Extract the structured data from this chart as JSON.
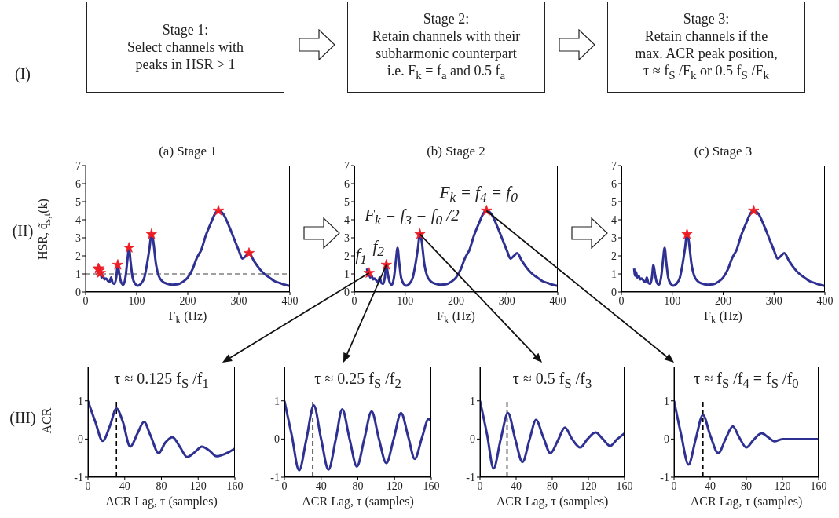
{
  "chart_data": [
    {
      "type": "other",
      "annotations": [
        "(I)",
        "Stage 1:\nSelect channels with\npeaks in HSR > 1",
        "Stage 2:\nRetain channels with their\nsubharmonic counterpart\ni.e. F$_{k}$ = f$_{a}$ and 0.5 f$_{a}$",
        "Stage 3:\nRetain channels if the\nmax. ACR peak position,\nτ ≈ f$_{S}$ /F$_{k}$ or 0.5 f$_{S}$ /F$_{k}$"
      ]
    },
    {
      "type": "line",
      "title": "(a) Stage 1",
      "xlabel": "F$_{k}$ (Hz)",
      "ylabel": "HSR, q̃$_{s,t}$(k)",
      "xlim": [
        0,
        400
      ],
      "ylim": [
        0,
        7
      ],
      "xticks": [
        0,
        100,
        200,
        300,
        400
      ],
      "yticks": [
        0,
        1,
        2,
        3,
        4,
        5,
        6,
        7
      ],
      "series": [
        {
          "color": "#2e3192",
          "x": [
            27,
            29,
            31,
            34,
            37,
            40,
            44,
            47,
            50,
            53,
            57,
            60,
            63,
            66,
            70,
            74,
            78,
            82,
            85,
            88,
            92,
            97,
            102,
            108,
            115,
            120,
            125,
            129,
            132,
            138,
            143,
            150,
            160,
            170,
            180,
            190,
            200,
            210,
            218,
            222,
            226,
            235,
            245,
            255,
            260,
            270,
            280,
            290,
            300,
            307,
            314,
            320,
            330,
            340,
            350,
            360,
            370,
            380,
            390,
            400
          ],
          "values": [
            0.9,
            1.1,
            0.8,
            0.9,
            0.7,
            0.75,
            0.6,
            0.55,
            0.8,
            0.5,
            0.45,
            0.8,
            1.5,
            1.0,
            0.5,
            0.4,
            0.8,
            1.8,
            2.45,
            1.7,
            0.8,
            0.45,
            0.35,
            0.45,
            0.8,
            1.5,
            2.4,
            3.2,
            2.9,
            1.5,
            0.9,
            0.6,
            0.45,
            0.4,
            0.42,
            0.55,
            0.8,
            1.3,
            1.9,
            2.1,
            2.3,
            3.1,
            3.8,
            4.4,
            4.5,
            4.3,
            3.7,
            3.0,
            2.3,
            1.85,
            2.0,
            2.15,
            1.7,
            1.3,
            1.0,
            0.8,
            0.6,
            0.5,
            0.4,
            0.33
          ]
        },
        {
          "type": "scatter",
          "marker": "star",
          "color": "#ed1c24",
          "x": [
            25,
            27,
            29,
            63,
            85,
            129,
            260,
            320
          ],
          "values": [
            1.3,
            1.2,
            1.05,
            1.5,
            2.45,
            3.2,
            4.5,
            2.15
          ]
        }
      ],
      "ref_lines": [
        {
          "axis": "y",
          "value": 1,
          "color": "#808080",
          "line_style": "dashed"
        }
      ],
      "annotations": [
        "(II)"
      ]
    },
    {
      "type": "line",
      "title": "(b) Stage 2",
      "xlabel": "F$_{k}$ (Hz)",
      "xlim": [
        0,
        400
      ],
      "ylim": [
        0,
        7
      ],
      "xticks": [
        0,
        100,
        200,
        300,
        400
      ],
      "yticks": [
        0,
        1,
        2,
        3,
        4,
        5,
        6,
        7
      ],
      "series": [
        {
          "color": "#2e3192",
          "x": [
            25,
            27,
            29,
            31,
            34,
            37,
            40,
            44,
            47,
            50,
            53,
            57,
            60,
            63,
            66,
            70,
            74,
            78,
            82,
            85,
            88,
            92,
            97,
            102,
            108,
            115,
            120,
            125,
            129,
            132,
            138,
            143,
            150,
            160,
            170,
            180,
            190,
            200,
            210,
            218,
            222,
            226,
            235,
            245,
            255,
            260,
            270,
            280,
            290,
            300,
            307,
            314,
            320,
            330,
            340,
            350,
            360,
            370,
            380,
            390,
            400
          ],
          "values": [
            1.3,
            0.9,
            1.1,
            0.8,
            0.9,
            0.7,
            0.75,
            0.6,
            0.55,
            0.8,
            0.5,
            0.45,
            0.8,
            1.5,
            1.0,
            0.5,
            0.4,
            0.8,
            1.8,
            2.45,
            1.7,
            0.8,
            0.45,
            0.35,
            0.45,
            0.8,
            1.5,
            2.4,
            3.2,
            2.9,
            1.5,
            0.9,
            0.6,
            0.45,
            0.4,
            0.42,
            0.55,
            0.8,
            1.3,
            1.9,
            2.1,
            2.3,
            3.1,
            3.8,
            4.4,
            4.5,
            4.3,
            3.7,
            3.0,
            2.3,
            1.85,
            2.0,
            2.15,
            1.7,
            1.3,
            1.0,
            0.8,
            0.6,
            0.5,
            0.4,
            0.33
          ]
        },
        {
          "type": "scatter",
          "marker": "star",
          "color": "#ed1c24",
          "x": [
            29,
            63,
            129,
            260
          ],
          "values": [
            1.05,
            1.5,
            3.2,
            4.5
          ]
        }
      ],
      "annotations": [
        {
          "text": "f$_{1}$",
          "x": 29,
          "y": 1.05
        },
        {
          "text": "f$_{2}$",
          "x": 63,
          "y": 1.5
        },
        {
          "text": "F$_{k}$ = f$_{3}$ = f$_{0}$ /2",
          "x": 129,
          "y": 3.2
        },
        {
          "text": "F$_{k}$ = f$_{4}$ = f$_{0}$",
          "x": 260,
          "y": 4.5
        }
      ]
    },
    {
      "type": "line",
      "title": "(c) Stage 3",
      "xlabel": "F$_{k}$ (Hz)",
      "xlim": [
        0,
        400
      ],
      "ylim": [
        0,
        7
      ],
      "xticks": [
        0,
        100,
        200,
        300,
        400
      ],
      "yticks": [
        0,
        1,
        2,
        3,
        4,
        5,
        6,
        7
      ],
      "series": [
        {
          "color": "#2e3192",
          "x": [
            25,
            27,
            29,
            31,
            34,
            37,
            40,
            44,
            47,
            50,
            53,
            57,
            60,
            63,
            66,
            70,
            74,
            78,
            82,
            85,
            88,
            92,
            97,
            102,
            108,
            115,
            120,
            125,
            129,
            132,
            138,
            143,
            150,
            160,
            170,
            180,
            190,
            200,
            210,
            218,
            222,
            226,
            235,
            245,
            255,
            260,
            270,
            280,
            290,
            300,
            307,
            314,
            320,
            330,
            340,
            350,
            360,
            370,
            380,
            390,
            400
          ],
          "values": [
            1.3,
            0.9,
            1.1,
            0.8,
            0.9,
            0.7,
            0.75,
            0.6,
            0.55,
            0.8,
            0.5,
            0.45,
            0.8,
            1.5,
            1.0,
            0.5,
            0.4,
            0.8,
            1.8,
            2.45,
            1.7,
            0.8,
            0.45,
            0.35,
            0.45,
            0.8,
            1.5,
            2.4,
            3.2,
            2.9,
            1.5,
            0.9,
            0.6,
            0.45,
            0.4,
            0.42,
            0.55,
            0.8,
            1.3,
            1.9,
            2.1,
            2.3,
            3.1,
            3.8,
            4.4,
            4.5,
            4.3,
            3.7,
            3.0,
            2.3,
            1.85,
            2.0,
            2.15,
            1.7,
            1.3,
            1.0,
            0.8,
            0.6,
            0.5,
            0.4,
            0.33
          ]
        },
        {
          "type": "scatter",
          "marker": "star",
          "color": "#ed1c24",
          "x": [
            129,
            260
          ],
          "values": [
            3.2,
            4.5
          ]
        }
      ]
    },
    {
      "type": "line",
      "title": "τ ≈ 0.125 f$_{S}$ /f$_{1}$",
      "xlabel": "ACR Lag, τ (samples)",
      "ylabel": "ACR",
      "xlim": [
        0,
        160
      ],
      "ylim": [
        -1,
        1.9
      ],
      "xticks": [
        0,
        40,
        80,
        120,
        160
      ],
      "yticks": [
        -1,
        0,
        1
      ],
      "series": [
        {
          "color": "#2e3192",
          "x": [
            0,
            8,
            16,
            24,
            31,
            38,
            46,
            54,
            61,
            68,
            77,
            84,
            92,
            100,
            108,
            116,
            124,
            132,
            140,
            150,
            160
          ],
          "values": [
            1,
            0.45,
            -0.05,
            0.35,
            0.8,
            0.45,
            -0.2,
            0.15,
            0.45,
            0.1,
            -0.37,
            -0.1,
            0.05,
            -0.2,
            -0.47,
            -0.35,
            -0.2,
            -0.3,
            -0.45,
            -0.38,
            -0.25
          ]
        }
      ],
      "ref_lines": [
        {
          "axis": "x",
          "value": 31,
          "color": "#000000",
          "line_style": "dashed"
        }
      ],
      "annotations": [
        "(III)"
      ]
    },
    {
      "type": "line",
      "title": "τ ≈ 0.25 f$_{S}$ /f$_{2}$",
      "xlabel": "ACR Lag, τ (samples)",
      "xlim": [
        0,
        160
      ],
      "ylim": [
        -1,
        1.9
      ],
      "xticks": [
        0,
        40,
        80,
        120,
        160
      ],
      "yticks": [
        -1,
        0,
        1
      ],
      "series": [
        {
          "color": "#2e3192",
          "x": [
            0,
            8,
            16,
            24,
            32,
            40,
            48,
            56,
            63,
            71,
            79,
            87,
            95,
            103,
            111,
            119,
            127,
            135,
            142,
            150,
            157,
            160
          ],
          "values": [
            1,
            0.1,
            -0.82,
            0.0,
            0.88,
            0.0,
            -0.8,
            0.0,
            0.78,
            0.0,
            -0.72,
            0.0,
            0.72,
            0.0,
            -0.63,
            0.0,
            0.68,
            0.05,
            -0.52,
            0.05,
            0.52,
            0.48
          ]
        }
      ],
      "ref_lines": [
        {
          "axis": "x",
          "value": 31,
          "color": "#000000",
          "line_style": "dashed"
        }
      ]
    },
    {
      "type": "line",
      "title": "τ ≈ 0.5 f$_{S}$ /f$_{3}$",
      "xlabel": "ACR Lag, τ (samples)",
      "xlim": [
        0,
        160
      ],
      "ylim": [
        -1,
        1.9
      ],
      "xticks": [
        0,
        40,
        80,
        120,
        160
      ],
      "yticks": [
        -1,
        0,
        1
      ],
      "series": [
        {
          "color": "#2e3192",
          "x": [
            0,
            8,
            15,
            23,
            31,
            39,
            47,
            55,
            62,
            70,
            78,
            86,
            94,
            102,
            111,
            119,
            128,
            136,
            144,
            152,
            160
          ],
          "values": [
            1,
            0.1,
            -0.77,
            0.0,
            0.68,
            0.0,
            -0.6,
            0.0,
            0.5,
            0.05,
            -0.37,
            -0.05,
            0.3,
            0.0,
            -0.22,
            0.0,
            0.17,
            0.0,
            -0.18,
            0.0,
            0.15
          ]
        }
      ],
      "ref_lines": [
        {
          "axis": "x",
          "value": 30,
          "color": "#000000",
          "line_style": "dashed"
        }
      ]
    },
    {
      "type": "line",
      "title": "τ ≈ f$_{S}$ /f$_{4}$ = f$_{S}$ /f$_{0}$",
      "xlabel": "ACR Lag, τ (samples)",
      "xlim": [
        0,
        160
      ],
      "ylim": [
        -1,
        1.9
      ],
      "xticks": [
        0,
        40,
        80,
        120,
        160
      ],
      "yticks": [
        -1,
        0,
        1
      ],
      "series": [
        {
          "color": "#2e3192",
          "x": [
            0,
            8,
            16,
            24,
            32,
            40,
            49,
            57,
            65,
            72,
            80,
            88,
            97,
            104,
            111,
            120,
            140,
            160
          ],
          "values": [
            1,
            0.1,
            -0.67,
            0.0,
            0.63,
            0.1,
            -0.37,
            0.0,
            0.33,
            0.05,
            -0.22,
            -0.02,
            0.15,
            0.05,
            -0.06,
            0.0,
            0.0,
            0.0
          ]
        }
      ],
      "ref_lines": [
        {
          "axis": "x",
          "value": 32,
          "color": "#000000",
          "line_style": "dashed"
        }
      ]
    }
  ]
}
